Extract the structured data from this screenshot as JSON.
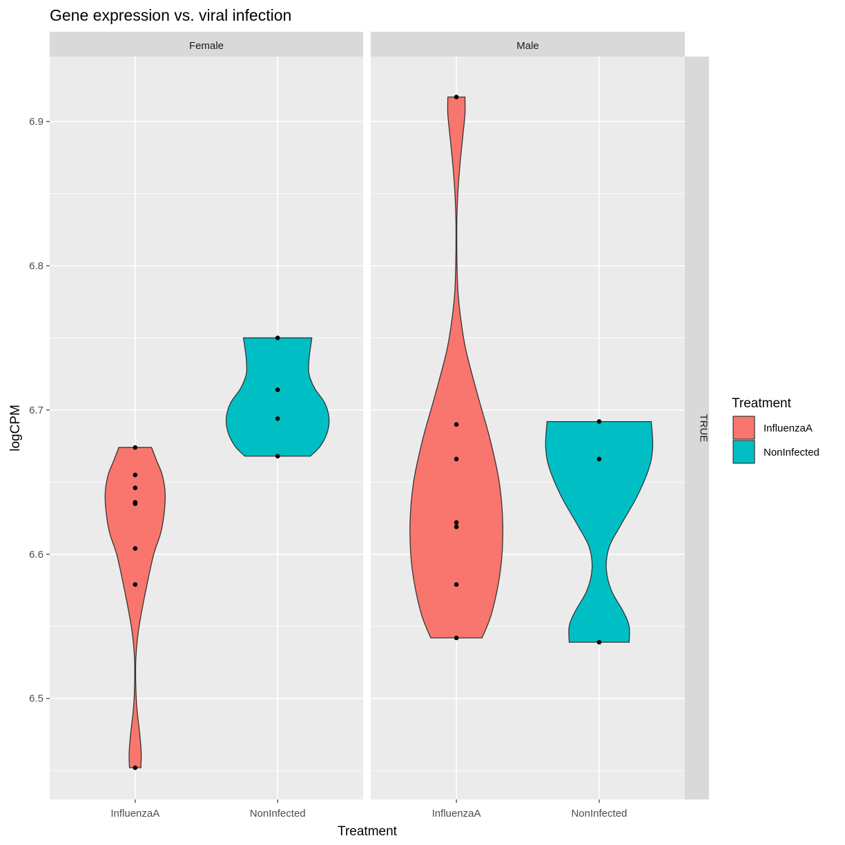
{
  "chart_data": {
    "type": "violin",
    "title": "Gene expression vs. viral infection",
    "xlabel": "Treatment",
    "ylabel": "logCPM",
    "ylim": [
      6.43,
      6.945
    ],
    "yticks": [
      6.5,
      6.6,
      6.7,
      6.8,
      6.9
    ],
    "ytick_labels": [
      "6.5",
      "6.6",
      "6.7",
      "6.8",
      "6.9"
    ],
    "categories": [
      "InfluenzaA",
      "NonInfected"
    ],
    "facet_columns": [
      "Female",
      "Male"
    ],
    "facet_row": "TRUE",
    "grid": true,
    "legend": {
      "title": "Treatment",
      "position": "right",
      "entries": [
        {
          "label": "InfluenzaA",
          "color": "#F8766D"
        },
        {
          "label": "NonInfected",
          "color": "#00BFC4"
        }
      ]
    },
    "panels": [
      {
        "facet": "Female",
        "groups": [
          {
            "category": "InfluenzaA",
            "color": "#F8766D",
            "min": 6.452,
            "max": 6.674,
            "points": [
              6.452,
              6.579,
              6.604,
              6.635,
              6.636,
              6.646,
              6.655,
              6.674
            ],
            "width_profile": [
              [
                6.452,
                0.08
              ],
              [
                6.462,
                0.085
              ],
              [
                6.475,
                0.065
              ],
              [
                6.49,
                0.03
              ],
              [
                6.5,
                0.015
              ],
              [
                6.51,
                0.008
              ],
              [
                6.52,
                0.006
              ],
              [
                6.53,
                0.012
              ],
              [
                6.545,
                0.04
              ],
              [
                6.56,
                0.09
              ],
              [
                6.58,
                0.17
              ],
              [
                6.6,
                0.26
              ],
              [
                6.615,
                0.36
              ],
              [
                6.63,
                0.41
              ],
              [
                6.643,
                0.42
              ],
              [
                6.655,
                0.38
              ],
              [
                6.665,
                0.3
              ],
              [
                6.674,
                0.23
              ]
            ]
          },
          {
            "category": "NonInfected",
            "color": "#00BFC4",
            "min": 6.668,
            "max": 6.75,
            "points": [
              6.668,
              6.694,
              6.714,
              6.75
            ],
            "width_profile": [
              [
                6.668,
                0.46
              ],
              [
                6.675,
                0.6
              ],
              [
                6.685,
                0.7
              ],
              [
                6.695,
                0.72
              ],
              [
                6.705,
                0.66
              ],
              [
                6.715,
                0.52
              ],
              [
                6.725,
                0.44
              ],
              [
                6.735,
                0.44
              ],
              [
                6.743,
                0.46
              ],
              [
                6.75,
                0.48
              ]
            ]
          }
        ]
      },
      {
        "facet": "Male",
        "groups": [
          {
            "category": "InfluenzaA",
            "color": "#F8766D",
            "min": 6.542,
            "max": 6.917,
            "points": [
              6.542,
              6.579,
              6.619,
              6.622,
              6.666,
              6.69,
              6.917
            ],
            "width_profile": [
              [
                6.542,
                0.36
              ],
              [
                6.56,
                0.5
              ],
              [
                6.59,
                0.62
              ],
              [
                6.62,
                0.65
              ],
              [
                6.65,
                0.6
              ],
              [
                6.68,
                0.47
              ],
              [
                6.71,
                0.3
              ],
              [
                6.74,
                0.14
              ],
              [
                6.76,
                0.07
              ],
              [
                6.78,
                0.025
              ],
              [
                6.8,
                0.009
              ],
              [
                6.83,
                0.006
              ],
              [
                6.85,
                0.02
              ],
              [
                6.87,
                0.05
              ],
              [
                6.89,
                0.09
              ],
              [
                6.905,
                0.12
              ],
              [
                6.917,
                0.12
              ]
            ]
          },
          {
            "category": "NonInfected",
            "color": "#00BFC4",
            "min": 6.539,
            "max": 6.692,
            "points": [
              6.539,
              6.666,
              6.692
            ],
            "width_profile": [
              [
                6.539,
                0.42
              ],
              [
                6.55,
                0.42
              ],
              [
                6.56,
                0.34
              ],
              [
                6.575,
                0.17
              ],
              [
                6.59,
                0.1
              ],
              [
                6.605,
                0.14
              ],
              [
                6.62,
                0.3
              ],
              [
                6.64,
                0.53
              ],
              [
                6.66,
                0.7
              ],
              [
                6.675,
                0.75
              ],
              [
                6.692,
                0.73
              ]
            ]
          }
        ]
      }
    ]
  }
}
